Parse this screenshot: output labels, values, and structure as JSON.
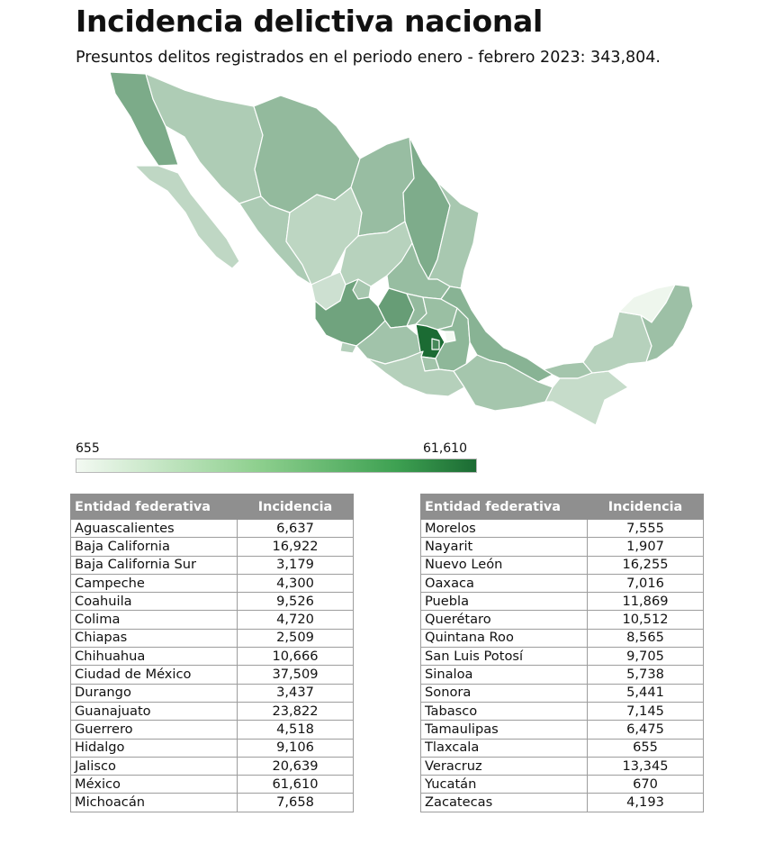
{
  "title": "Incidencia delictiva nacional",
  "subtitle": "Presuntos delitos registrados en el periodo enero - febrero 2023: 343,804.",
  "legend": {
    "min": "655",
    "max": "61,610",
    "color_low": "#f3f9f2",
    "color_high": "#1b6b33"
  },
  "table_headers": {
    "entity": "Entidad federativa",
    "value": "Incidencia"
  },
  "table_left": [
    {
      "state": "Aguascalientes",
      "value": "6,637"
    },
    {
      "state": "Baja California",
      "value": "16,922"
    },
    {
      "state": "Baja California Sur",
      "value": "3,179"
    },
    {
      "state": "Campeche",
      "value": "4,300"
    },
    {
      "state": "Coahuila",
      "value": "9,526"
    },
    {
      "state": "Colima",
      "value": "4,720"
    },
    {
      "state": "Chiapas",
      "value": "2,509"
    },
    {
      "state": "Chihuahua",
      "value": "10,666"
    },
    {
      "state": "Ciudad de México",
      "value": "37,509"
    },
    {
      "state": "Durango",
      "value": "3,437"
    },
    {
      "state": "Guanajuato",
      "value": "23,822"
    },
    {
      "state": "Guerrero",
      "value": "4,518"
    },
    {
      "state": "Hidalgo",
      "value": "9,106"
    },
    {
      "state": "Jalisco",
      "value": "20,639"
    },
    {
      "state": "México",
      "value": "61,610"
    },
    {
      "state": "Michoacán",
      "value": "7,658"
    }
  ],
  "table_right": [
    {
      "state": "Morelos",
      "value": "7,555"
    },
    {
      "state": "Nayarit",
      "value": "1,907"
    },
    {
      "state": "Nuevo León",
      "value": "16,255"
    },
    {
      "state": "Oaxaca",
      "value": "7,016"
    },
    {
      "state": "Puebla",
      "value": "11,869"
    },
    {
      "state": "Querétaro",
      "value": "10,512"
    },
    {
      "state": "Quintana Roo",
      "value": "8,565"
    },
    {
      "state": "San Luis Potosí",
      "value": "9,705"
    },
    {
      "state": "Sinaloa",
      "value": "5,738"
    },
    {
      "state": "Sonora",
      "value": "5,441"
    },
    {
      "state": "Tabasco",
      "value": "7,145"
    },
    {
      "state": "Tamaulipas",
      "value": "6,475"
    },
    {
      "state": "Tlaxcala",
      "value": "655"
    },
    {
      "state": "Veracruz",
      "value": "13,345"
    },
    {
      "state": "Yucatán",
      "value": "670"
    },
    {
      "state": "Zacatecas",
      "value": "4,193"
    }
  ]
}
